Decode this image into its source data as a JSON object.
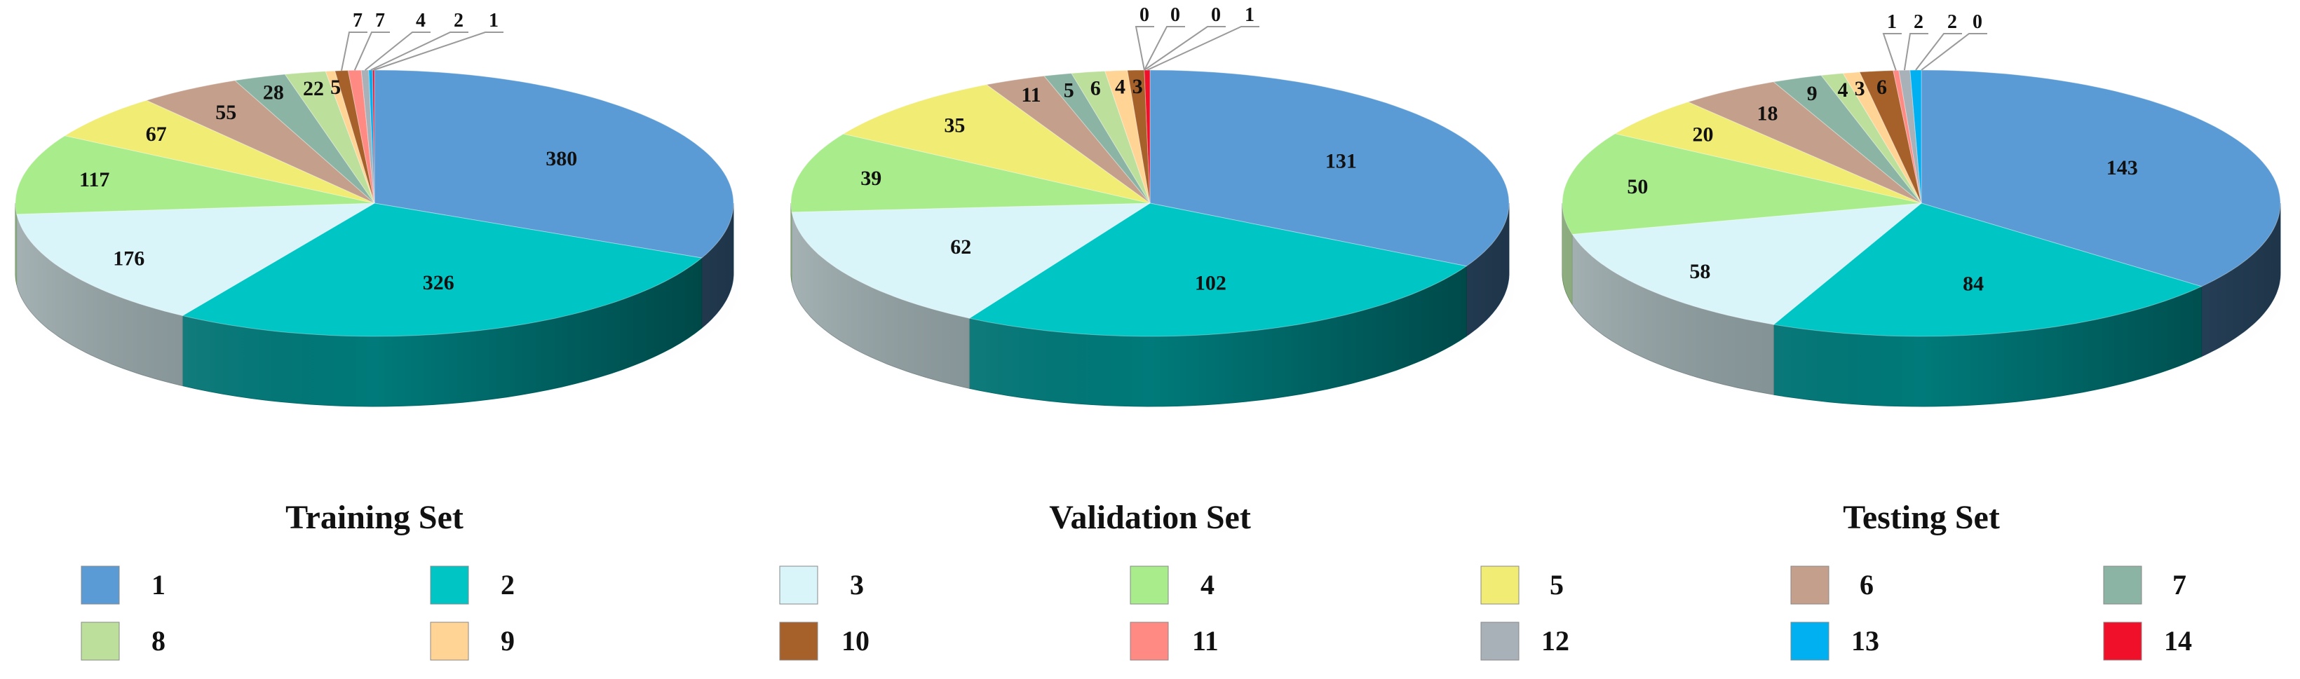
{
  "chart_data": [
    {
      "type": "pie",
      "title": "Training Set",
      "categories": [
        "1",
        "2",
        "3",
        "4",
        "5",
        "6",
        "7",
        "8",
        "9",
        "10",
        "11",
        "12",
        "13",
        "14"
      ],
      "values": [
        380,
        326,
        176,
        117,
        67,
        55,
        28,
        22,
        5,
        7,
        7,
        4,
        2,
        1
      ]
    },
    {
      "type": "pie",
      "title": "Validation Set",
      "categories": [
        "1",
        "2",
        "3",
        "4",
        "5",
        "6",
        "7",
        "8",
        "9",
        "10",
        "11",
        "12",
        "13",
        "14"
      ],
      "values": [
        131,
        102,
        62,
        39,
        35,
        11,
        5,
        6,
        4,
        3,
        0,
        0,
        0,
        1
      ]
    },
    {
      "type": "pie",
      "title": "Testing Set",
      "categories": [
        "1",
        "2",
        "3",
        "4",
        "5",
        "6",
        "7",
        "8",
        "9",
        "10",
        "11",
        "12",
        "13",
        "14"
      ],
      "values": [
        143,
        84,
        58,
        50,
        20,
        18,
        9,
        4,
        3,
        6,
        1,
        2,
        2,
        0
      ]
    }
  ],
  "legend": {
    "placement": "bottom",
    "items": [
      {
        "label": "1",
        "color": "#5b9bd5"
      },
      {
        "label": "2",
        "color": "#00c5c5"
      },
      {
        "label": "3",
        "color": "#daf5fa"
      },
      {
        "label": "4",
        "color": "#a8ec8c"
      },
      {
        "label": "5",
        "color": "#f0ec74"
      },
      {
        "label": "6",
        "color": "#c4a08c"
      },
      {
        "label": "7",
        "color": "#8cb4a4"
      },
      {
        "label": "8",
        "color": "#bce09c"
      },
      {
        "label": "9",
        "color": "#ffd494"
      },
      {
        "label": "10",
        "color": "#a6612a"
      },
      {
        "label": "11",
        "color": "#ff8a84"
      },
      {
        "label": "12",
        "color": "#a8b0b8"
      },
      {
        "label": "13",
        "color": "#00b0f0"
      },
      {
        "label": "14",
        "color": "#f0102a"
      }
    ]
  }
}
